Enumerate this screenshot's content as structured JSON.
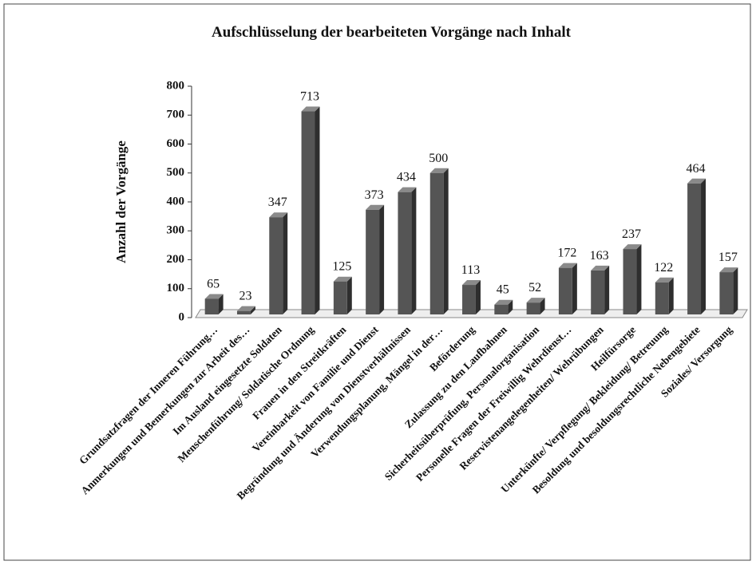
{
  "chart_data": {
    "type": "bar",
    "title": "Aufschlüsselung der bearbeiteten Vorgänge nach Inhalt",
    "y_label": "Anzahl der Vorgänge",
    "categories": [
      "Grundsatzfragen der Inneren Führung…",
      "Anmerkungen und Bemerkungen zur Arbeit des…",
      "Im Ausland eingesetzte Soldaten",
      "Menschenführung/ Soldatische Ordnung",
      "Frauen in den Streitkräften",
      "Vereinbarkeit von Familie und Dienst",
      "Begründung und Änderung von Dienstverhältnissen",
      "Verwendungsplanung, Mängel in der…",
      "Beförderung",
      "Zulassung zu den Laufbahnen",
      "Sicherheitsüberprüfung, Personalorganisation",
      "Personelle Fragen der Freiwillig Wehrdienst…",
      "Reservistenangelegenheiten/ Wehrübungen",
      "Heilfürsorge",
      "Unterkünfte/ Verpflegung/ Bekleidung/ Betreuung",
      "Besoldung und besoldungsrechtliche Nebengebiete",
      "Soziales/ Versorgung"
    ],
    "values": [
      65,
      23,
      347,
      713,
      125,
      373,
      434,
      500,
      113,
      45,
      52,
      172,
      163,
      237,
      122,
      464,
      157
    ],
    "color": "#555555",
    "ylim": [
      0,
      800
    ],
    "yticks": [
      0,
      100,
      200,
      300,
      400,
      500,
      600,
      700,
      800
    ]
  }
}
